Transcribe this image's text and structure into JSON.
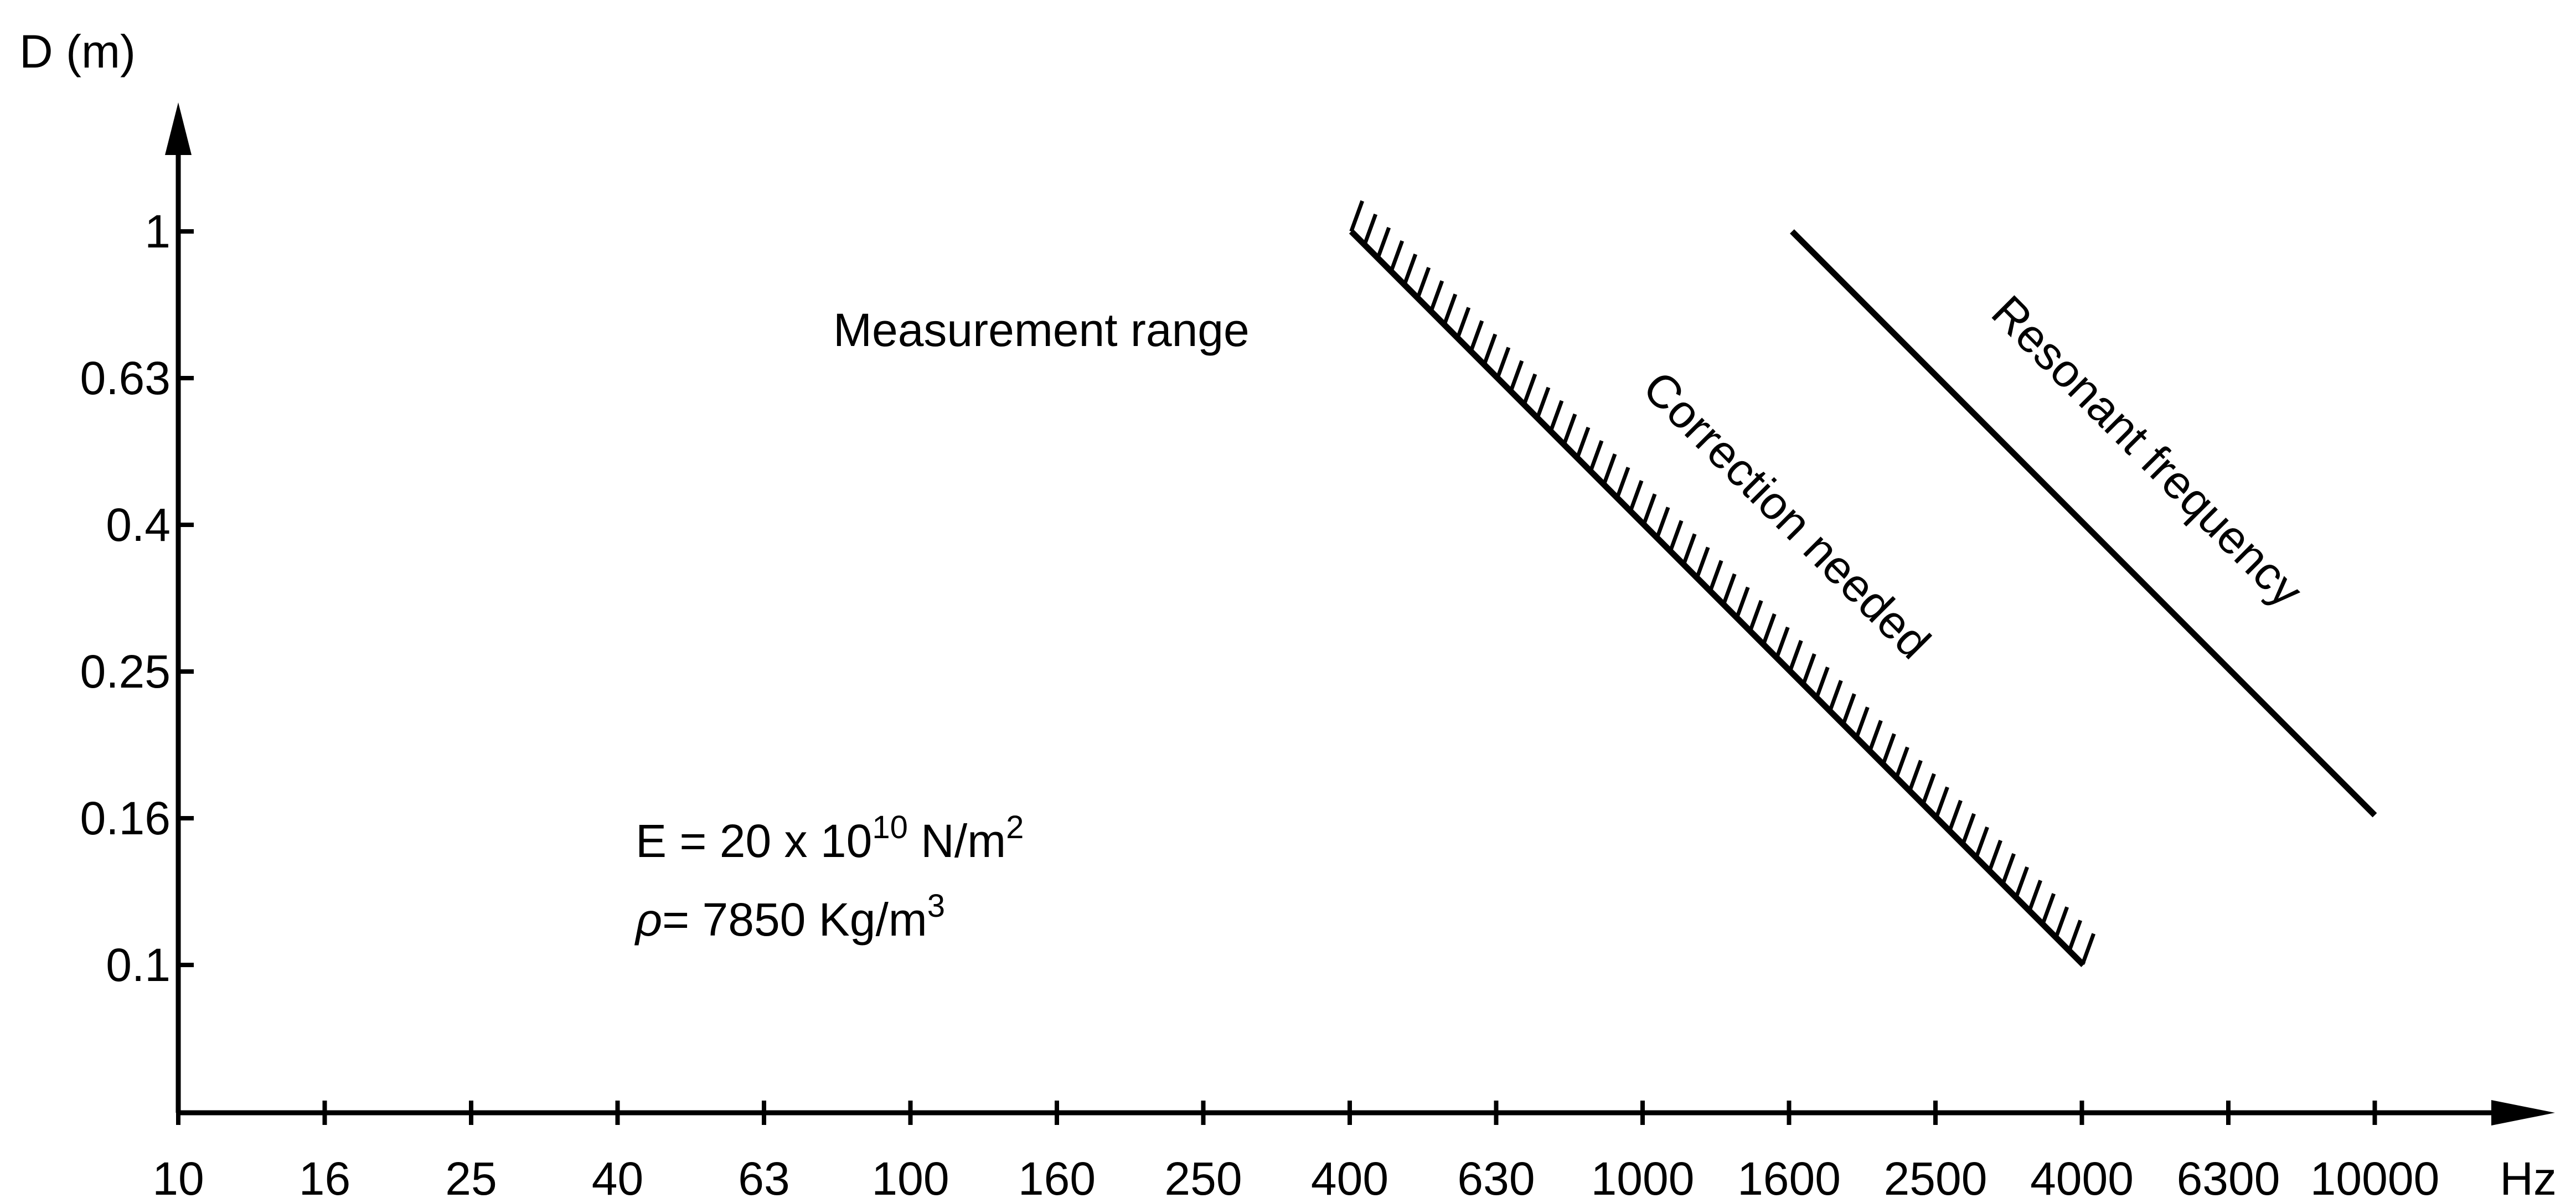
{
  "chart_data": {
    "type": "line",
    "ylabel": "D (m)",
    "xunit": "Hz",
    "x_scale": "log",
    "y_scale": "log",
    "x_ticks": [
      "10",
      "16",
      "25",
      "40",
      "63",
      "100",
      "160",
      "250",
      "400",
      "630",
      "1000",
      "1600",
      "2500",
      "4000",
      "6300",
      "10000"
    ],
    "y_ticks": [
      "1",
      "0.63",
      "0.4",
      "0.25",
      "0.16",
      "0.1"
    ],
    "series": [
      {
        "name": "Correction needed",
        "style": "hatched",
        "points": [
          {
            "x": 400,
            "y": 1.0
          },
          {
            "x": 4000,
            "y": 0.1
          }
        ]
      },
      {
        "name": "Resonant frequency",
        "style": "solid",
        "points": [
          {
            "x": 1600,
            "y": 1.0
          },
          {
            "x": 10000,
            "y": 0.16
          }
        ]
      }
    ],
    "annotations": {
      "region_label": "Measurement range",
      "modulus_prefix": "E = 20 x 10",
      "modulus_exp": "10",
      "modulus_unit": " N/m",
      "modulus_unit_exp": "2",
      "density_symbol": "ρ",
      "density_text": "= 7850 Kg/m",
      "density_exp": "3"
    },
    "grid": false,
    "colors": {
      "ink": "#000000",
      "background": "#ffffff"
    }
  }
}
